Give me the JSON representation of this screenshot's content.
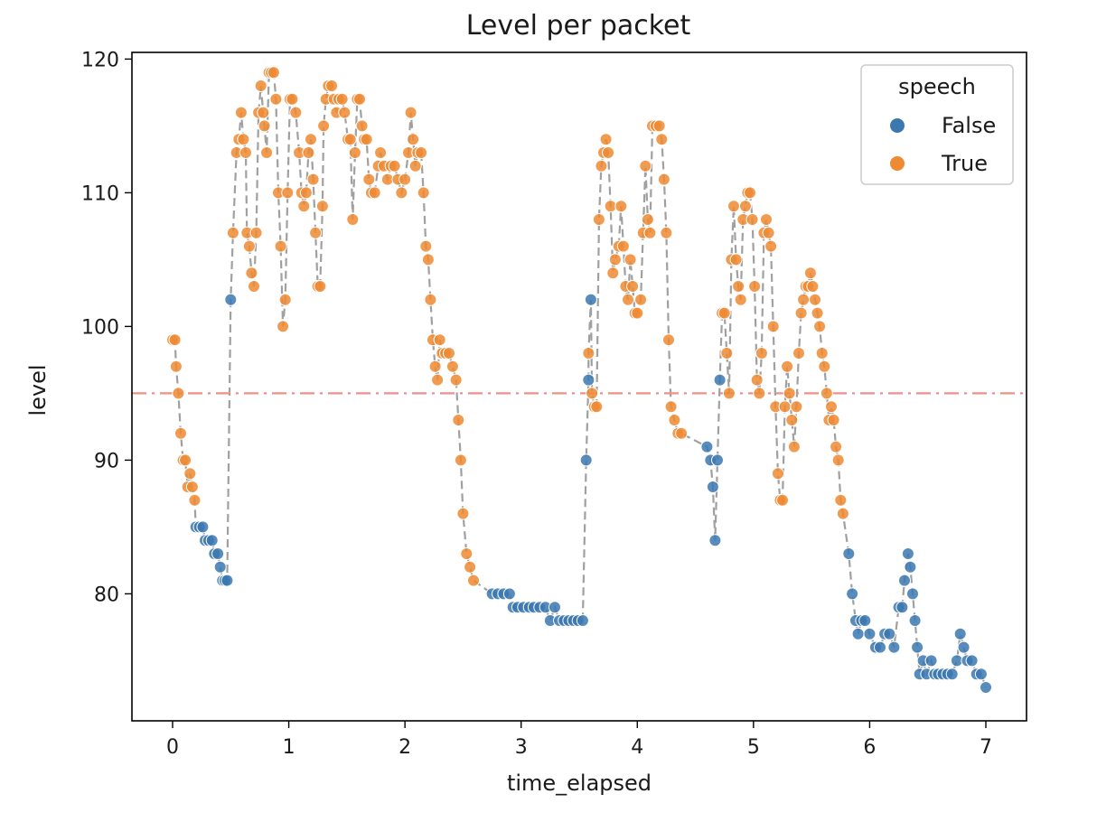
{
  "chart_data": {
    "type": "scatter",
    "title": "Level per packet",
    "xlabel": "time_elapsed",
    "ylabel": "level",
    "xlim": [
      -0.35,
      7.35
    ],
    "ylim": [
      70.5,
      120.5
    ],
    "xticks": [
      "0",
      "1",
      "2",
      "3",
      "4",
      "5",
      "6",
      "7"
    ],
    "yticks": [
      "80",
      "90",
      "100",
      "110",
      "120"
    ],
    "threshold": 95,
    "threshold_color": "#ee8f88",
    "connector_color": "#a0a0a0",
    "legend": {
      "title": "speech",
      "placement": "top-right",
      "entries": [
        {
          "label": "False",
          "color": "#3b78b0"
        },
        {
          "label": "True",
          "color": "#ef8a32"
        }
      ]
    },
    "series": [
      {
        "name": "False",
        "color": "#3b78b0",
        "points": [
          [
            0.2,
            85
          ],
          [
            0.23,
            85
          ],
          [
            0.26,
            85
          ],
          [
            0.28,
            84
          ],
          [
            0.31,
            84
          ],
          [
            0.34,
            84
          ],
          [
            0.36,
            83
          ],
          [
            0.39,
            83
          ],
          [
            0.41,
            82
          ],
          [
            0.43,
            81
          ],
          [
            0.45,
            81
          ],
          [
            0.47,
            81
          ],
          [
            0.5,
            102
          ],
          [
            2.75,
            80
          ],
          [
            2.8,
            80
          ],
          [
            2.85,
            80
          ],
          [
            2.9,
            80
          ],
          [
            2.93,
            79
          ],
          [
            2.97,
            79
          ],
          [
            3.02,
            79
          ],
          [
            3.07,
            79
          ],
          [
            3.11,
            79
          ],
          [
            3.16,
            79
          ],
          [
            3.21,
            79
          ],
          [
            3.25,
            78
          ],
          [
            3.29,
            79
          ],
          [
            3.33,
            78
          ],
          [
            3.37,
            78
          ],
          [
            3.41,
            78
          ],
          [
            3.45,
            78
          ],
          [
            3.49,
            78
          ],
          [
            3.53,
            78
          ],
          [
            3.56,
            90
          ],
          [
            3.58,
            96
          ],
          [
            3.6,
            102
          ],
          [
            4.6,
            91
          ],
          [
            4.63,
            90
          ],
          [
            4.65,
            88
          ],
          [
            4.67,
            84
          ],
          [
            4.69,
            90
          ],
          [
            4.71,
            96
          ],
          [
            5.82,
            83
          ],
          [
            5.85,
            80
          ],
          [
            5.88,
            78
          ],
          [
            5.9,
            77
          ],
          [
            5.93,
            78
          ],
          [
            5.96,
            78
          ],
          [
            6.0,
            77
          ],
          [
            6.05,
            76
          ],
          [
            6.09,
            76
          ],
          [
            6.13,
            77
          ],
          [
            6.17,
            77
          ],
          [
            6.21,
            76
          ],
          [
            6.25,
            79
          ],
          [
            6.28,
            79
          ],
          [
            6.3,
            81
          ],
          [
            6.33,
            83
          ],
          [
            6.35,
            82
          ],
          [
            6.37,
            80
          ],
          [
            6.39,
            78
          ],
          [
            6.41,
            76
          ],
          [
            6.43,
            74
          ],
          [
            6.46,
            75
          ],
          [
            6.49,
            74
          ],
          [
            6.53,
            75
          ],
          [
            6.56,
            74
          ],
          [
            6.59,
            74
          ],
          [
            6.63,
            74
          ],
          [
            6.67,
            74
          ],
          [
            6.71,
            74
          ],
          [
            6.75,
            75
          ],
          [
            6.78,
            77
          ],
          [
            6.81,
            76
          ],
          [
            6.84,
            75
          ],
          [
            6.88,
            75
          ],
          [
            6.92,
            74
          ],
          [
            6.96,
            74
          ],
          [
            7.0,
            73
          ]
        ]
      },
      {
        "name": "True",
        "color": "#ef8a32",
        "points": [
          [
            0.0,
            99
          ],
          [
            0.02,
            99
          ],
          [
            0.03,
            97
          ],
          [
            0.05,
            95
          ],
          [
            0.07,
            92
          ],
          [
            0.09,
            90
          ],
          [
            0.11,
            90
          ],
          [
            0.13,
            88
          ],
          [
            0.15,
            89
          ],
          [
            0.17,
            88
          ],
          [
            0.19,
            87
          ],
          [
            0.52,
            107
          ],
          [
            0.55,
            113
          ],
          [
            0.57,
            114
          ],
          [
            0.59,
            116
          ],
          [
            0.61,
            114
          ],
          [
            0.63,
            113
          ],
          [
            0.64,
            107
          ],
          [
            0.66,
            106
          ],
          [
            0.68,
            104
          ],
          [
            0.7,
            103
          ],
          [
            0.72,
            107
          ],
          [
            0.74,
            116
          ],
          [
            0.76,
            118
          ],
          [
            0.78,
            116
          ],
          [
            0.79,
            115
          ],
          [
            0.81,
            113
          ],
          [
            0.83,
            119
          ],
          [
            0.85,
            119
          ],
          [
            0.87,
            119
          ],
          [
            0.89,
            117
          ],
          [
            0.91,
            110
          ],
          [
            0.93,
            106
          ],
          [
            0.95,
            100
          ],
          [
            0.97,
            102
          ],
          [
            0.99,
            110
          ],
          [
            1.01,
            117
          ],
          [
            1.03,
            117
          ],
          [
            1.06,
            116
          ],
          [
            1.09,
            113
          ],
          [
            1.11,
            110
          ],
          [
            1.13,
            109
          ],
          [
            1.15,
            110
          ],
          [
            1.17,
            113
          ],
          [
            1.19,
            114
          ],
          [
            1.21,
            111
          ],
          [
            1.23,
            107
          ],
          [
            1.25,
            103
          ],
          [
            1.27,
            103
          ],
          [
            1.29,
            109
          ],
          [
            1.3,
            115
          ],
          [
            1.32,
            117
          ],
          [
            1.34,
            118
          ],
          [
            1.37,
            118
          ],
          [
            1.39,
            117
          ],
          [
            1.41,
            116
          ],
          [
            1.43,
            117
          ],
          [
            1.46,
            117
          ],
          [
            1.48,
            116
          ],
          [
            1.51,
            114
          ],
          [
            1.53,
            114
          ],
          [
            1.55,
            108
          ],
          [
            1.57,
            113
          ],
          [
            1.59,
            117
          ],
          [
            1.61,
            117
          ],
          [
            1.63,
            115
          ],
          [
            1.65,
            114
          ],
          [
            1.67,
            114
          ],
          [
            1.69,
            111
          ],
          [
            1.71,
            110
          ],
          [
            1.74,
            110
          ],
          [
            1.77,
            112
          ],
          [
            1.79,
            113
          ],
          [
            1.82,
            112
          ],
          [
            1.85,
            111
          ],
          [
            1.88,
            112
          ],
          [
            1.91,
            112
          ],
          [
            1.94,
            111
          ],
          [
            1.97,
            110
          ],
          [
            2.0,
            111
          ],
          [
            2.03,
            113
          ],
          [
            2.05,
            116
          ],
          [
            2.07,
            114
          ],
          [
            2.09,
            112
          ],
          [
            2.11,
            113
          ],
          [
            2.14,
            113
          ],
          [
            2.16,
            110
          ],
          [
            2.18,
            106
          ],
          [
            2.2,
            105
          ],
          [
            2.22,
            102
          ],
          [
            2.24,
            99
          ],
          [
            2.26,
            97
          ],
          [
            2.28,
            96
          ],
          [
            2.3,
            99
          ],
          [
            2.32,
            98
          ],
          [
            2.35,
            98
          ],
          [
            2.38,
            98
          ],
          [
            2.41,
            97
          ],
          [
            2.44,
            96
          ],
          [
            2.46,
            93
          ],
          [
            2.48,
            90
          ],
          [
            2.5,
            86
          ],
          [
            2.53,
            83
          ],
          [
            2.56,
            82
          ],
          [
            2.59,
            81
          ],
          [
            3.58,
            98
          ],
          [
            3.61,
            95
          ],
          [
            3.63,
            94
          ],
          [
            3.65,
            94
          ],
          [
            3.67,
            108
          ],
          [
            3.69,
            112
          ],
          [
            3.71,
            113
          ],
          [
            3.73,
            114
          ],
          [
            3.75,
            113
          ],
          [
            3.77,
            109
          ],
          [
            3.79,
            104
          ],
          [
            3.81,
            105
          ],
          [
            3.84,
            106
          ],
          [
            3.86,
            109
          ],
          [
            3.88,
            106
          ],
          [
            3.9,
            103
          ],
          [
            3.92,
            102
          ],
          [
            3.94,
            105
          ],
          [
            3.96,
            103
          ],
          [
            3.98,
            101
          ],
          [
            4.0,
            101
          ],
          [
            4.03,
            102
          ],
          [
            4.05,
            107
          ],
          [
            4.07,
            112
          ],
          [
            4.09,
            108
          ],
          [
            4.11,
            107
          ],
          [
            4.13,
            115
          ],
          [
            4.16,
            115
          ],
          [
            4.19,
            115
          ],
          [
            4.21,
            114
          ],
          [
            4.23,
            111
          ],
          [
            4.25,
            107
          ],
          [
            4.27,
            99
          ],
          [
            4.29,
            94
          ],
          [
            4.32,
            93
          ],
          [
            4.35,
            92
          ],
          [
            4.38,
            92
          ],
          [
            4.73,
            101
          ],
          [
            4.75,
            101
          ],
          [
            4.77,
            98
          ],
          [
            4.79,
            95
          ],
          [
            4.81,
            105
          ],
          [
            4.83,
            109
          ],
          [
            4.85,
            105
          ],
          [
            4.87,
            103
          ],
          [
            4.89,
            102
          ],
          [
            4.91,
            108
          ],
          [
            4.93,
            109
          ],
          [
            4.95,
            110
          ],
          [
            4.97,
            110
          ],
          [
            4.99,
            108
          ],
          [
            5.01,
            103
          ],
          [
            5.03,
            96
          ],
          [
            5.05,
            95
          ],
          [
            5.07,
            98
          ],
          [
            5.09,
            107
          ],
          [
            5.11,
            108
          ],
          [
            5.13,
            107
          ],
          [
            5.15,
            106
          ],
          [
            5.17,
            100
          ],
          [
            5.19,
            94
          ],
          [
            5.21,
            89
          ],
          [
            5.23,
            87
          ],
          [
            5.25,
            87
          ],
          [
            5.27,
            94
          ],
          [
            5.29,
            97
          ],
          [
            5.31,
            95
          ],
          [
            5.33,
            93
          ],
          [
            5.35,
            91
          ],
          [
            5.37,
            94
          ],
          [
            5.39,
            98
          ],
          [
            5.41,
            101
          ],
          [
            5.43,
            102
          ],
          [
            5.45,
            103
          ],
          [
            5.47,
            103
          ],
          [
            5.49,
            104
          ],
          [
            5.51,
            103
          ],
          [
            5.53,
            102
          ],
          [
            5.55,
            101
          ],
          [
            5.57,
            100
          ],
          [
            5.59,
            98
          ],
          [
            5.61,
            97
          ],
          [
            5.63,
            95
          ],
          [
            5.65,
            93
          ],
          [
            5.67,
            94
          ],
          [
            5.69,
            93
          ],
          [
            5.71,
            91
          ],
          [
            5.73,
            90
          ],
          [
            5.75,
            87
          ],
          [
            5.77,
            86
          ]
        ]
      }
    ]
  }
}
